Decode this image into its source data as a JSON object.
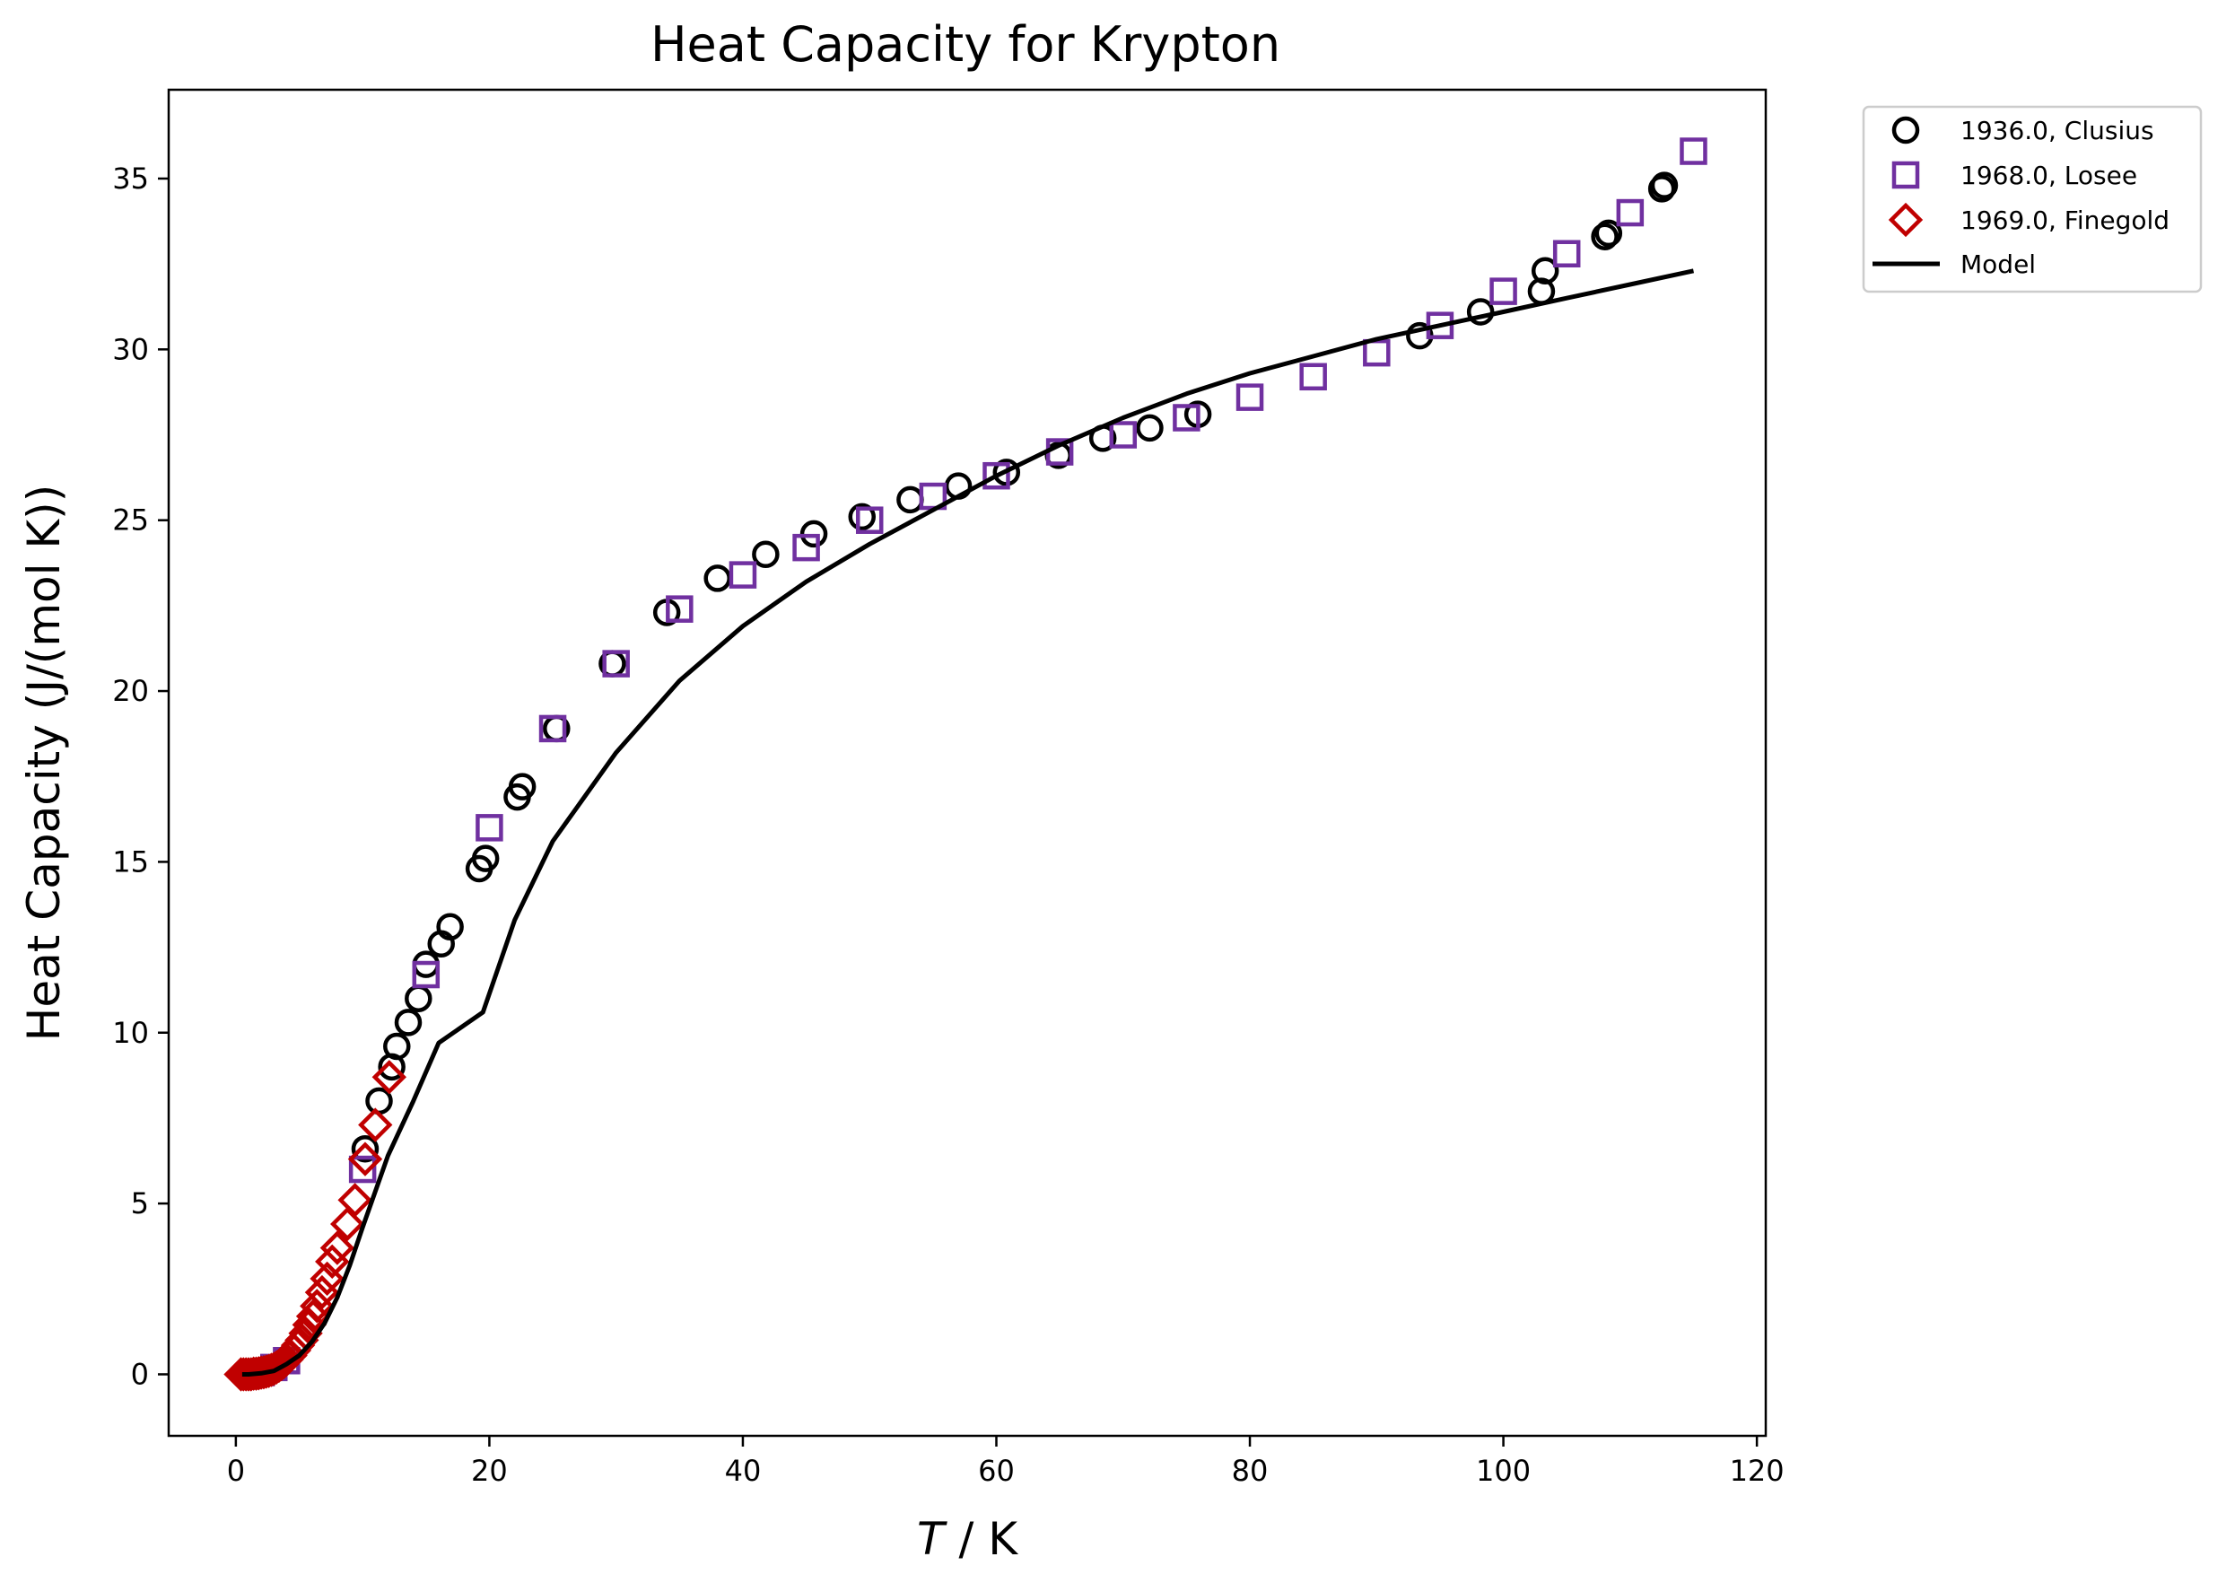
{
  "chart_data": {
    "type": "scatter",
    "title": "Heat Capacity for Krypton",
    "xlabel_italic": "T",
    "xlabel_rest": " / K",
    "ylabel": "Heat Capacity (J/(mol K))",
    "xlim": [
      -5.3,
      120.7
    ],
    "ylim": [
      -1.8,
      37.6
    ],
    "xticks": [
      0,
      20,
      40,
      60,
      80,
      100,
      120
    ],
    "yticks": [
      0,
      5,
      10,
      15,
      20,
      25,
      30,
      35
    ],
    "grid": false,
    "legend_position": "outside top-right",
    "series": [
      {
        "name": "1936.0, Clusius",
        "marker": "circle",
        "color": "#000000",
        "points": [
          [
            10.2,
            6.6
          ],
          [
            11.3,
            8.0
          ],
          [
            12.3,
            9.0
          ],
          [
            12.7,
            9.6
          ],
          [
            13.6,
            10.3
          ],
          [
            14.4,
            11.0
          ],
          [
            15.0,
            12.0
          ],
          [
            16.2,
            12.6
          ],
          [
            16.9,
            13.1
          ],
          [
            19.2,
            14.8
          ],
          [
            19.7,
            15.1
          ],
          [
            22.2,
            16.9
          ],
          [
            22.6,
            17.2
          ],
          [
            25.3,
            18.9
          ],
          [
            29.7,
            20.8
          ],
          [
            34.0,
            22.3
          ],
          [
            38.0,
            23.3
          ],
          [
            41.8,
            24.0
          ],
          [
            45.6,
            24.6
          ],
          [
            49.4,
            25.1
          ],
          [
            53.2,
            25.6
          ],
          [
            57.0,
            26.0
          ],
          [
            60.8,
            26.4
          ],
          [
            64.9,
            26.9
          ],
          [
            68.4,
            27.4
          ],
          [
            72.1,
            27.7
          ],
          [
            75.9,
            28.1
          ],
          [
            93.4,
            30.4
          ],
          [
            98.2,
            31.1
          ],
          [
            103.0,
            31.7
          ],
          [
            103.3,
            32.3
          ],
          [
            108.0,
            33.3
          ],
          [
            108.3,
            33.4
          ],
          [
            112.5,
            34.7
          ],
          [
            112.7,
            34.8
          ]
        ]
      },
      {
        "name": "1968.0, Losee",
        "marker": "square",
        "color": "#7030a0",
        "points": [
          [
            2.0,
            0.05
          ],
          [
            3.0,
            0.2
          ],
          [
            4.0,
            0.4
          ],
          [
            10.0,
            6.0
          ],
          [
            15.0,
            11.7
          ],
          [
            20.0,
            16.0
          ],
          [
            25.0,
            18.9
          ],
          [
            30.0,
            20.8
          ],
          [
            35.0,
            22.4
          ],
          [
            40.0,
            23.4
          ],
          [
            45.0,
            24.2
          ],
          [
            50.0,
            25.0
          ],
          [
            55.0,
            25.7
          ],
          [
            60.0,
            26.3
          ],
          [
            65.0,
            27.0
          ],
          [
            70.0,
            27.5
          ],
          [
            75.0,
            28.0
          ],
          [
            80.0,
            28.6
          ],
          [
            85.0,
            29.2
          ],
          [
            90.0,
            29.9
          ],
          [
            95.0,
            30.7
          ],
          [
            100.0,
            31.7
          ],
          [
            105.0,
            32.8
          ],
          [
            110.0,
            34.0
          ],
          [
            115.0,
            35.8
          ]
        ]
      },
      {
        "name": "1969.0, Finegold",
        "marker": "diamond",
        "color": "#c00000",
        "points": [
          [
            0.4,
            0.0
          ],
          [
            0.6,
            0.0
          ],
          [
            0.8,
            0.0
          ],
          [
            1.0,
            0.0
          ],
          [
            1.2,
            0.0
          ],
          [
            1.4,
            0.02
          ],
          [
            1.6,
            0.02
          ],
          [
            1.8,
            0.03
          ],
          [
            2.0,
            0.05
          ],
          [
            2.2,
            0.06
          ],
          [
            2.4,
            0.08
          ],
          [
            2.6,
            0.1
          ],
          [
            2.8,
            0.13
          ],
          [
            3.0,
            0.16
          ],
          [
            3.2,
            0.2
          ],
          [
            3.4,
            0.25
          ],
          [
            3.6,
            0.3
          ],
          [
            3.8,
            0.36
          ],
          [
            4.0,
            0.43
          ],
          [
            4.3,
            0.55
          ],
          [
            4.6,
            0.7
          ],
          [
            4.9,
            0.85
          ],
          [
            5.2,
            1.0
          ],
          [
            5.5,
            1.2
          ],
          [
            5.8,
            1.45
          ],
          [
            6.1,
            1.7
          ],
          [
            6.4,
            2.0
          ],
          [
            6.8,
            2.4
          ],
          [
            7.2,
            2.8
          ],
          [
            7.6,
            3.3
          ],
          [
            8.0,
            3.7
          ],
          [
            8.8,
            4.4
          ],
          [
            9.4,
            5.1
          ],
          [
            10.2,
            6.3
          ],
          [
            11.0,
            7.3
          ],
          [
            12.1,
            8.7
          ]
        ]
      },
      {
        "name": "Model",
        "type": "line",
        "color": "#000000",
        "points": [
          [
            0.5,
            0.0
          ],
          [
            1.0,
            0.0
          ],
          [
            2.0,
            0.03
          ],
          [
            3.0,
            0.1
          ],
          [
            4.0,
            0.3
          ],
          [
            5.0,
            0.55
          ],
          [
            6.0,
            0.95
          ],
          [
            7.0,
            1.5
          ],
          [
            8.0,
            2.25
          ],
          [
            9.0,
            3.2
          ],
          [
            10.0,
            4.3
          ],
          [
            12.0,
            6.4
          ],
          [
            14.0,
            8.0
          ],
          [
            16.0,
            9.7
          ],
          [
            19.5,
            10.6
          ],
          [
            22.0,
            13.3
          ],
          [
            25.0,
            15.6
          ],
          [
            30.0,
            18.2
          ],
          [
            35.0,
            20.3
          ],
          [
            40.0,
            21.9
          ],
          [
            45.0,
            23.2
          ],
          [
            50.0,
            24.3
          ],
          [
            55.0,
            25.3
          ],
          [
            60.0,
            26.3
          ],
          [
            65.0,
            27.2
          ],
          [
            70.0,
            28.0
          ],
          [
            75.0,
            28.7
          ],
          [
            80.0,
            29.3
          ],
          [
            85.0,
            29.8
          ],
          [
            90.0,
            30.3
          ],
          [
            95.0,
            30.7
          ],
          [
            100.0,
            31.1
          ],
          [
            105.0,
            31.5
          ],
          [
            110.0,
            31.9
          ],
          [
            115.0,
            32.3
          ]
        ]
      }
    ]
  }
}
